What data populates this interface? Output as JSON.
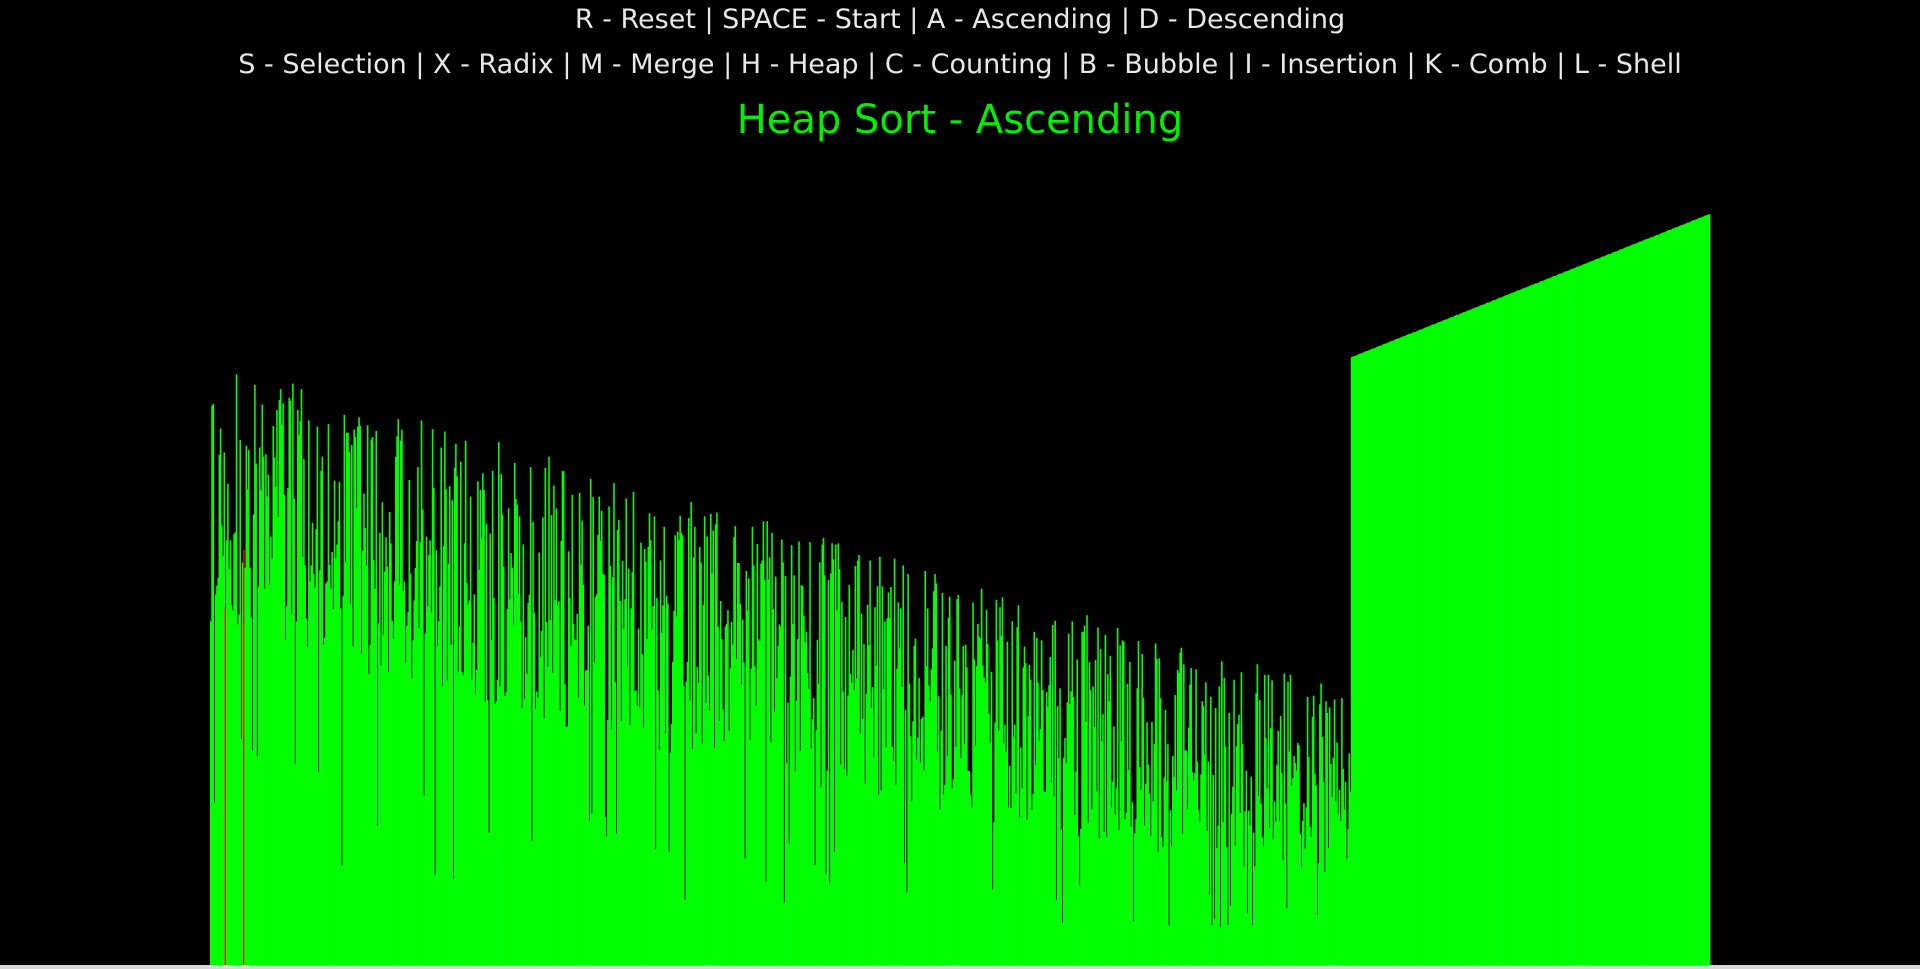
{
  "controls": {
    "line1": "R - Reset | SPACE - Start | A - Ascending | D - Descending",
    "line2": "S - Selection | X - Radix | M - Merge | H - Heap | C - Counting | B - Bubble | I - Insertion | K - Comb | L - Shell"
  },
  "status": {
    "title": "Heap Sort - Ascending"
  },
  "colors": {
    "background": "#000000",
    "bar": "#00ff00",
    "highlight": "#ff0000",
    "title": "#00ee00",
    "help_text": "#e8e8e8"
  },
  "visualizer": {
    "bar_count": 1224,
    "sorted_count": 293,
    "max_value": 1224,
    "heap_region_top_fraction": 0.81,
    "highlighted_indices": [
      12,
      27
    ]
  }
}
